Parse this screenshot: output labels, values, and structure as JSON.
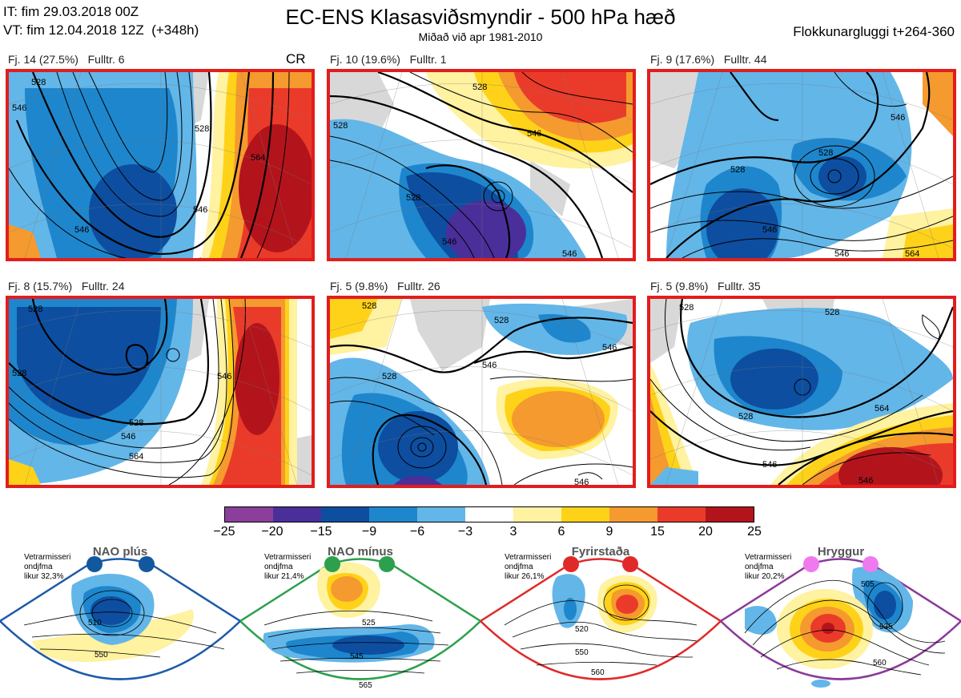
{
  "header": {
    "it_line": "IT: fim 29.03.2018 00Z",
    "vt_line": "VT: fim 12.04.2018 12Z  (+348h)",
    "title": "EC-ENS Klasasviðsmyndir - 500 hPa hæð",
    "subtitle": "Miðað við apr 1981-2010",
    "window": "Flokkunargluggi t+264-360"
  },
  "clusters": [
    {
      "label": "Fj. 14 (27.5%)",
      "rep": "Fulltr. 6",
      "tag": "CR",
      "contours": [
        "528",
        "546",
        "546",
        "528",
        "546",
        "564"
      ]
    },
    {
      "label": "Fj. 10 (19.6%)",
      "rep": "Fulltr. 1",
      "tag": "",
      "contours": [
        "528",
        "528",
        "546",
        "528",
        "546",
        "546"
      ]
    },
    {
      "label": "Fj. 9 (17.6%)",
      "rep": "Fulltr. 44",
      "tag": "",
      "contours": [
        "528",
        "546",
        "528",
        "546",
        "546",
        "564"
      ]
    },
    {
      "label": "Fj. 8 (15.7%)",
      "rep": "Fulltr. 24",
      "tag": "",
      "contours": [
        "528",
        "528",
        "528",
        "546",
        "564",
        "546"
      ]
    },
    {
      "label": "Fj. 5 (9.8%)",
      "rep": "Fulltr. 26",
      "tag": "",
      "contours": [
        "528",
        "528",
        "528",
        "546",
        "546",
        "546"
      ]
    },
    {
      "label": "Fj. 5 (9.8%)",
      "rep": "Fulltr. 35",
      "tag": "",
      "contours": [
        "528",
        "528",
        "528",
        "546",
        "564",
        "546"
      ]
    }
  ],
  "colorbar": {
    "ticks": [
      "−25",
      "−20",
      "−15",
      "−9",
      "−6",
      "−3",
      "3",
      "6",
      "9",
      "15",
      "20",
      "25"
    ],
    "colors": [
      "#8b3f9b",
      "#4a2f9a",
      "#0d4ea0",
      "#1e86cc",
      "#63b6e8",
      "#ffffff",
      "#fff2a0",
      "#ffd21a",
      "#f59a2e",
      "#ea3b2a",
      "#b3141c"
    ]
  },
  "regimes": [
    {
      "name": "NAO plús",
      "note": "Vetrarmisseri\nondjfma\nlikur 32,3%",
      "color": "#1e5aa8",
      "dot": "#12589f",
      "contours": [
        "510",
        "550"
      ]
    },
    {
      "name": "NAO mínus",
      "note": "Vetrarmisseri\nondjfma\nlikur 21,4%",
      "color": "#2ca04c",
      "dot": "#2ca04c",
      "contours": [
        "525",
        "545",
        "565"
      ]
    },
    {
      "name": "Fyrirstaða",
      "note": "Vetrarmisseri\nondjfma\nlikur 26,1%",
      "color": "#e02a2a",
      "dot": "#e02a2a",
      "contours": [
        "520",
        "550",
        "560"
      ]
    },
    {
      "name": "Hryggur",
      "note": "Vetrarmisseri\nondjfma\nlikur 20,2%",
      "color": "#8a3a9a",
      "dot": "#ef7aef",
      "contours": [
        "505",
        "535",
        "560"
      ]
    }
  ]
}
